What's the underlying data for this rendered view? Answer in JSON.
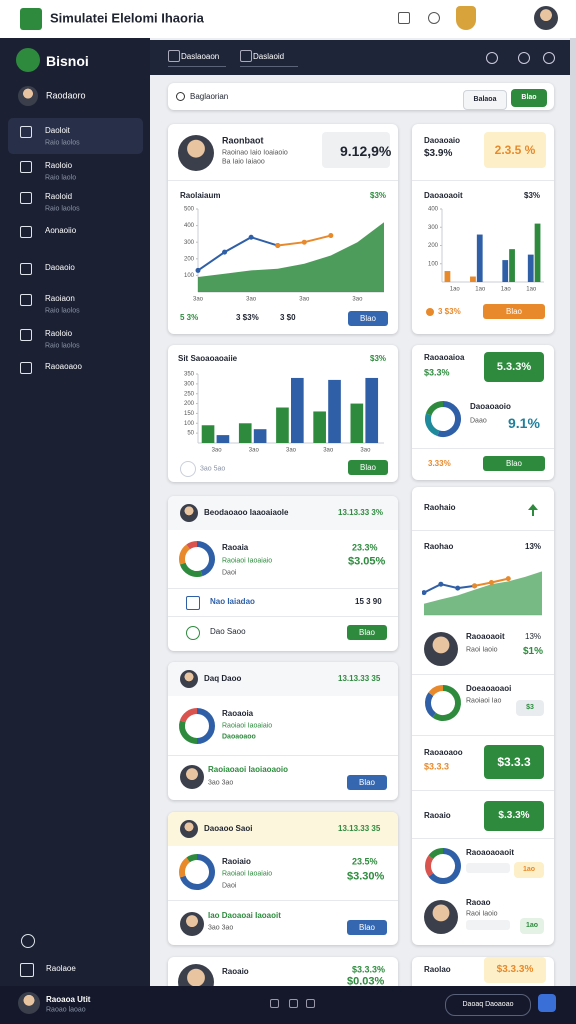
{
  "header": {
    "title": "Simulatei Elelomi Ihaoria"
  },
  "sidebar": {
    "brand": "Bisnoi",
    "account": "Raodaoro",
    "items": [
      {
        "label": "Daoloit",
        "sub": "Raio laolos"
      },
      {
        "label": "Raoloio",
        "sub": "Raio laolo"
      },
      {
        "label": "Raoloid",
        "sub": "Raio laolos"
      },
      {
        "label": "Aonaoiio"
      },
      {
        "label": "Daoaoio"
      },
      {
        "label": "Raoiaon",
        "sub": "Raio laolos"
      },
      {
        "label": "Raoloio",
        "sub": "Raio laolos"
      },
      {
        "label": "Raoaoaoo"
      }
    ],
    "settings": "Raolaoe"
  },
  "toolbar": {
    "tabs": [
      "Daslaoaon",
      "Daslaoid"
    ]
  },
  "search": {
    "placeholder": "Baglaorian",
    "filter": "Balaoa",
    "button": "Blao"
  },
  "footer": {
    "user": "Raoaoa Utit",
    "role": "Raoao laoao",
    "search": "Daoaq Daoaoao"
  },
  "overview": {
    "name": "Raonbaot",
    "lines": [
      "Raoinao Iaio Ioaiaoio",
      "Ba Iaio Iaiaoo"
    ],
    "value": "9.12,9%",
    "chart": {
      "type": "area-line",
      "title": "Raolaiaum",
      "note": "$3%",
      "ylim": [
        0,
        500
      ],
      "yticks": [
        100,
        200,
        300,
        400,
        500
      ],
      "categories": [
        "3ao",
        null,
        "3ao",
        null,
        "3ao",
        null,
        "3ao",
        null
      ],
      "series": [
        {
          "color": "#2e8b3e",
          "values": [
            90,
            110,
            130,
            140,
            170,
            220,
            300,
            420
          ]
        },
        {
          "color": "#2f5fa7",
          "values": [
            130,
            240,
            330,
            280,
            null,
            null,
            null,
            null
          ]
        },
        {
          "color": "#e8892b",
          "values": [
            null,
            null,
            null,
            280,
            300,
            340,
            null,
            null
          ]
        }
      ]
    },
    "stats": [
      "5 3%",
      "3 $3%",
      "3 $0"
    ],
    "button": "Blao"
  },
  "segments": {
    "chart": {
      "type": "bar",
      "title": "Sit Saoaoaoaiie",
      "note": "$3%",
      "ylim": [
        0,
        350
      ],
      "yticks": [
        50,
        100,
        150,
        200,
        250,
        300,
        350
      ],
      "categories": [
        "3ao",
        "3ao",
        "3ao",
        "3ao",
        "3ao"
      ],
      "series": [
        {
          "color": "#2e8b3e",
          "values": [
            90,
            100,
            180,
            160,
            200
          ]
        },
        {
          "color": "#2f5fa7",
          "values": [
            40,
            70,
            330,
            320,
            330
          ]
        }
      ]
    },
    "footer_note": "3ao 5ao",
    "button": "Blao"
  },
  "list_a": {
    "title": "Beodaoaoo Iaaoaiaole",
    "value": "13.13.33 3%",
    "item": {
      "name": "Raoaia",
      "sub": "Raoiaoi Iaoaiaio",
      "note": "Daoi",
      "value": "23.3%",
      "value2": "$3.05%",
      "chart": {
        "type": "donut",
        "values": [
          45,
          25,
          20,
          10
        ],
        "colors": [
          "#2f5fa7",
          "#2e8b3e",
          "#e8892b",
          "#d9534f"
        ]
      }
    },
    "row": {
      "label": "Nao Iaiadao",
      "value": "15 3 90"
    },
    "action": {
      "label": "Dao Saoo",
      "button": "Blao"
    }
  },
  "list_b": {
    "title": "Daq Daoo",
    "value": "13.13.33 35",
    "item": {
      "name": "Raoaoia",
      "sub": "Raoiaoi Iaoaiaio",
      "note": "Daoaoaoo",
      "chart": {
        "type": "donut",
        "values": [
          50,
          30,
          20
        ],
        "colors": [
          "#2f5fa7",
          "#2e8b3e",
          "#d9534f"
        ]
      }
    },
    "person": {
      "name": "Raoiaoaoi Iaoiaoaoio",
      "sub": "3ao 3ao",
      "button": "Blao"
    }
  },
  "list_c": {
    "title": "Daoaoo Saoi",
    "value": "13.13.33 35",
    "item": {
      "name": "Raoiaio",
      "sub": "Raoiaoi Iaoaiaio",
      "note": "Daoi",
      "value": "23.5%",
      "value2": "$3.30%",
      "chart": {
        "type": "donut",
        "values": [
          70,
          20,
          10
        ],
        "colors": [
          "#2f5fa7",
          "#e8892b",
          "#2e8b3e"
        ]
      }
    },
    "person": {
      "name": "Iao Daoaoai Iaoaoit",
      "sub": "3ao 3ao",
      "button": "Blao"
    }
  },
  "list_d": {
    "name": "Raoaio",
    "value": "$3.3.3%",
    "value2": "$0.03%"
  },
  "summary": {
    "title": "Daoaoaio",
    "value": "$3.9%",
    "badge": "2.3.5 %",
    "chart": {
      "type": "bar",
      "title": "Daoaoaoit",
      "note": "$3%",
      "ylim": [
        0,
        400
      ],
      "yticks": [
        100,
        200,
        300,
        400
      ],
      "categories": [
        "1ao",
        "1ao",
        "1ao",
        "1ao"
      ],
      "series": [
        {
          "color": "#e8892b",
          "values": [
            60,
            30,
            null,
            null
          ]
        },
        {
          "color": "#2f5fa7",
          "values": [
            null,
            260,
            120,
            150
          ]
        },
        {
          "color": "#2e8b3e",
          "values": [
            null,
            null,
            180,
            320
          ]
        }
      ]
    },
    "footer_note": "3 $3%",
    "button": "Blao"
  },
  "ratio": {
    "title": "Raoaoaioa",
    "value": "$3.3%",
    "badge": "5.3.3%",
    "item": {
      "name": "Daoaoaoio",
      "sub": "Daao",
      "value": "9.1%",
      "chart": {
        "type": "donut",
        "values": [
          55,
          25,
          20
        ],
        "colors": [
          "#2f5fa7",
          "#1f8a9c",
          "#2e8b3e"
        ]
      }
    },
    "footer_note": "3.33%",
    "button": "Blao"
  },
  "feed": {
    "title": "Raohaio",
    "trend_chart": {
      "type": "area-line",
      "title": "Raohao",
      "note": "13%",
      "ylim": [
        0,
        100
      ],
      "series": [
        {
          "color": "#5fae6e",
          "values": [
            20,
            28,
            35,
            45,
            55,
            60,
            68,
            78
          ]
        },
        {
          "color": "#2f5fa7",
          "values": [
            40,
            55,
            48,
            52,
            null,
            null,
            null,
            null
          ]
        },
        {
          "color": "#e8892b",
          "values": [
            null,
            null,
            null,
            52,
            58,
            65,
            null,
            null
          ]
        }
      ]
    },
    "person": {
      "name": "Raoaoaoit",
      "sub": "Raoi Iaoio",
      "value": "13%",
      "value2": "$1%"
    },
    "donut_row": {
      "name": "Doeaoaoaoi",
      "sub": "Raoiaoi Iao",
      "badge": "$3",
      "chart": {
        "type": "donut",
        "values": [
          60,
          25,
          15
        ],
        "colors": [
          "#2e8b3e",
          "#2f5fa7",
          "#e8892b"
        ]
      }
    },
    "total": {
      "label": "Raoaoaoo",
      "value": "$3.3.3",
      "badge": "$3.3.3"
    },
    "balance": {
      "label": "Raoaio",
      "badge": "$.3.3%"
    },
    "split": {
      "name": "Raoaoaoaoit",
      "badge": "1ao",
      "chart": {
        "type": "donut",
        "values": [
          65,
          20,
          15
        ],
        "colors": [
          "#2f5fa7",
          "#d9534f",
          "#2e8b3e"
        ]
      }
    },
    "person2": {
      "name": "Raoao",
      "sub": "Raoi Iaoio",
      "badge": "1ao"
    }
  },
  "total": {
    "label": "Raolao",
    "badge": "$3.3.3%"
  }
}
